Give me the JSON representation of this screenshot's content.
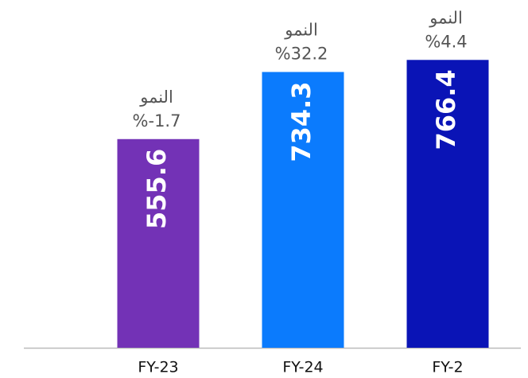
{
  "chart_data": {
    "type": "bar",
    "categories": [
      "FY-23",
      "FY-24",
      "FY-2"
    ],
    "values": [
      555.6,
      734.3,
      766.4
    ],
    "colors": [
      "#7332b6",
      "#0b7bfd",
      "#0a14b6"
    ],
    "annotations": [
      {
        "label": "النمو",
        "text": "%-1.7"
      },
      {
        "label": "النمو",
        "text": "%32.2"
      },
      {
        "label": "النمو",
        "text": "%4.4"
      }
    ],
    "ylim": [
      0,
      820
    ]
  }
}
